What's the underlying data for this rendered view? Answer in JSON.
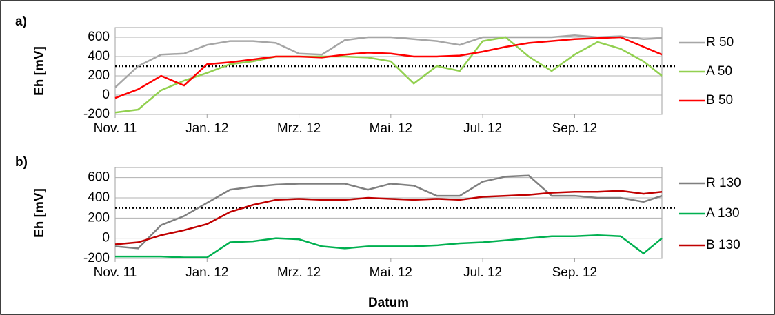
{
  "chart_data": [
    {
      "type": "line",
      "label": "a)",
      "ylabel": "Eh [mV]",
      "threshold": 300,
      "x": [
        0,
        0.5,
        1,
        1.5,
        2,
        2.5,
        3,
        3.5,
        4,
        4.5,
        5,
        5.5,
        6,
        6.5,
        7,
        7.5,
        8,
        8.5,
        9,
        9.5,
        10,
        10.5,
        11,
        11.5,
        11.9
      ],
      "xlim": [
        0,
        11.9
      ],
      "xticks": [
        {
          "value": 0,
          "label": "Nov. 11"
        },
        {
          "value": 2,
          "label": "Jan. 12"
        },
        {
          "value": 4,
          "label": "Mrz. 12"
        },
        {
          "value": 6,
          "label": "Mai. 12"
        },
        {
          "value": 8,
          "label": "Jul. 12"
        },
        {
          "value": 10,
          "label": "Sep. 12"
        }
      ],
      "ylim": [
        -200,
        700
      ],
      "yticks": [
        -200,
        0,
        200,
        400,
        600
      ],
      "grid": true,
      "series": [
        {
          "name": "R 50",
          "color": "#a6a6a6",
          "values": [
            80,
            300,
            420,
            430,
            520,
            560,
            560,
            540,
            430,
            420,
            570,
            600,
            600,
            580,
            560,
            520,
            600,
            600,
            600,
            600,
            620,
            600,
            610,
            580,
            590
          ]
        },
        {
          "name": "A 50",
          "color": "#92d050",
          "values": [
            -180,
            -150,
            50,
            150,
            230,
            320,
            350,
            400,
            400,
            400,
            400,
            390,
            350,
            120,
            300,
            250,
            560,
            600,
            400,
            250,
            420,
            550,
            480,
            350,
            200
          ]
        },
        {
          "name": "B 50",
          "color": "#ff0000",
          "values": [
            -30,
            60,
            200,
            100,
            320,
            340,
            370,
            400,
            400,
            390,
            420,
            440,
            430,
            400,
            400,
            410,
            450,
            500,
            540,
            560,
            580,
            590,
            600,
            500,
            420
          ]
        }
      ]
    },
    {
      "type": "line",
      "label": "b)",
      "ylabel": "Eh [mV]",
      "xlabel": "Datum",
      "threshold": 300,
      "x": [
        0,
        0.5,
        1,
        1.5,
        2,
        2.5,
        3,
        3.5,
        4,
        4.5,
        5,
        5.5,
        6,
        6.5,
        7,
        7.5,
        8,
        8.5,
        9,
        9.5,
        10,
        10.5,
        11,
        11.5,
        11.9
      ],
      "xlim": [
        0,
        11.9
      ],
      "xticks": [
        {
          "value": 0,
          "label": "Nov. 11"
        },
        {
          "value": 2,
          "label": "Jan. 12"
        },
        {
          "value": 4,
          "label": "Mrz. 12"
        },
        {
          "value": 6,
          "label": "Mai. 12"
        },
        {
          "value": 8,
          "label": "Jul. 12"
        },
        {
          "value": 10,
          "label": "Sep. 12"
        }
      ],
      "ylim": [
        -200,
        700
      ],
      "yticks": [
        -200,
        0,
        200,
        400,
        600
      ],
      "grid": true,
      "series": [
        {
          "name": "R 130",
          "color": "#7f7f7f",
          "values": [
            -80,
            -100,
            130,
            220,
            350,
            480,
            510,
            530,
            540,
            540,
            540,
            480,
            540,
            520,
            420,
            420,
            560,
            610,
            620,
            420,
            420,
            400,
            400,
            360,
            420
          ]
        },
        {
          "name": "A 130",
          "color": "#00b050",
          "values": [
            -180,
            -180,
            -180,
            -190,
            -190,
            -40,
            -30,
            0,
            -10,
            -80,
            -100,
            -80,
            -80,
            -80,
            -70,
            -50,
            -40,
            -20,
            0,
            20,
            20,
            30,
            20,
            -150,
            0
          ]
        },
        {
          "name": "B 130",
          "color": "#c00000",
          "values": [
            -60,
            -40,
            30,
            80,
            140,
            260,
            330,
            380,
            390,
            380,
            380,
            400,
            390,
            380,
            390,
            380,
            410,
            420,
            430,
            450,
            460,
            460,
            470,
            440,
            460
          ]
        }
      ]
    }
  ]
}
